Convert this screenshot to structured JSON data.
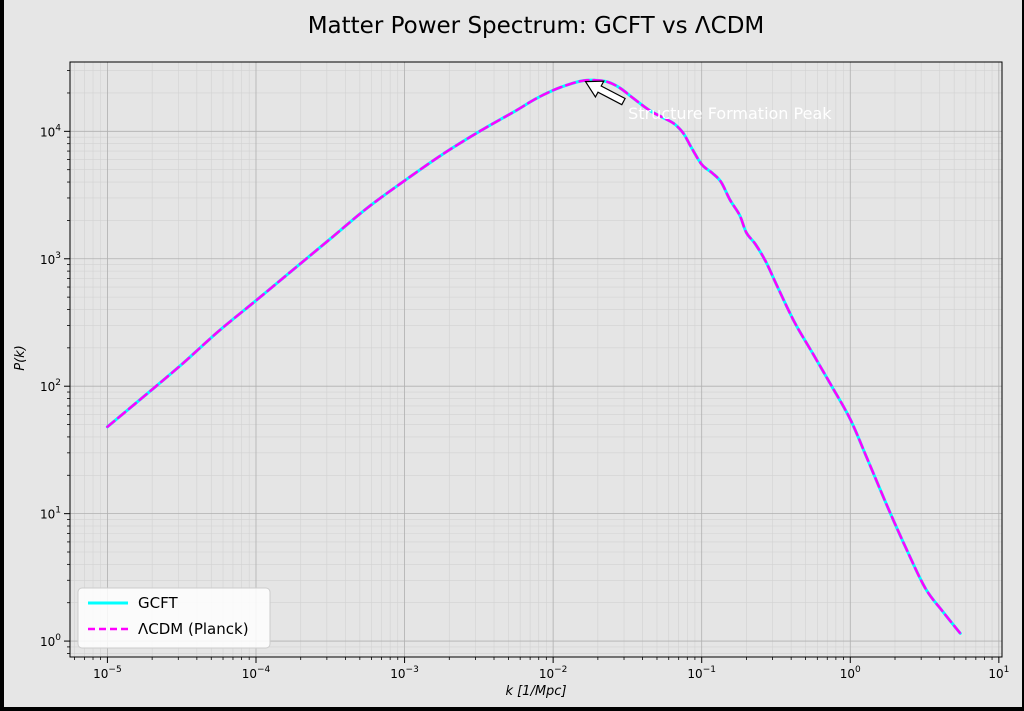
{
  "chart_data": {
    "type": "line",
    "title": "Matter Power Spectrum: GCFT vs ΛCDM",
    "xlabel": "k [1/Mpc]",
    "ylabel": "P(k)",
    "xscale": "log",
    "yscale": "log",
    "xlim": [
      5.6e-06,
      10.5
    ],
    "ylim": [
      0.75,
      35000
    ],
    "grid": true,
    "legend": "lower-left",
    "x_ticks": [
      "10^-5",
      "10^-4",
      "10^-3",
      "10^-2",
      "10^-1",
      "10^0",
      "10^1"
    ],
    "y_ticks": [
      "10^0",
      "10^1",
      "10^2",
      "10^3",
      "10^4"
    ],
    "series": [
      {
        "name": "GCFT",
        "color": "#00ffff",
        "style": "solid",
        "x": [
          1e-05,
          1.8e-05,
          3.2e-05,
          5.6e-05,
          0.0001,
          0.00018,
          0.00032,
          0.00056,
          0.001,
          0.0018,
          0.0032,
          0.0056,
          0.0075,
          0.01,
          0.013,
          0.016,
          0.019,
          0.023,
          0.028,
          0.035,
          0.045,
          0.055,
          0.065,
          0.075,
          0.085,
          0.1,
          0.118,
          0.135,
          0.155,
          0.18,
          0.2,
          0.23,
          0.27,
          0.32,
          0.42,
          0.56,
          0.75,
          1.0,
          1.3,
          1.8,
          2.4,
          3.2,
          4.2,
          5.5
        ],
        "values": [
          48,
          85,
          150,
          270,
          470,
          830,
          1450,
          2500,
          4100,
          6600,
          10000,
          14500,
          17800,
          21000,
          23500,
          25000,
          25200,
          24500,
          22000,
          18000,
          14500,
          12800,
          11500,
          9700,
          7500,
          5500,
          4700,
          4000,
          2900,
          2200,
          1600,
          1300,
          950,
          620,
          320,
          180,
          100,
          55,
          27,
          11,
          5.2,
          2.6,
          1.7,
          1.15
        ]
      },
      {
        "name": "ΛCDM (Planck)",
        "color": "#ff00ff",
        "style": "dashed",
        "x": [
          1e-05,
          1.8e-05,
          3.2e-05,
          5.6e-05,
          0.0001,
          0.00018,
          0.00032,
          0.00056,
          0.001,
          0.0018,
          0.0032,
          0.0056,
          0.0075,
          0.01,
          0.013,
          0.016,
          0.019,
          0.023,
          0.028,
          0.035,
          0.045,
          0.055,
          0.065,
          0.075,
          0.085,
          0.1,
          0.118,
          0.135,
          0.155,
          0.18,
          0.2,
          0.23,
          0.27,
          0.32,
          0.42,
          0.56,
          0.75,
          1.0,
          1.3,
          1.8,
          2.4,
          3.2,
          4.2,
          5.5
        ],
        "values": [
          48,
          85,
          150,
          270,
          470,
          830,
          1450,
          2500,
          4100,
          6600,
          10000,
          14500,
          17800,
          21000,
          23500,
          25000,
          25200,
          24500,
          22000,
          18000,
          14500,
          12800,
          11500,
          9700,
          7500,
          5500,
          4700,
          4000,
          2900,
          2200,
          1600,
          1300,
          950,
          620,
          320,
          180,
          100,
          55,
          27,
          11,
          5.2,
          2.6,
          1.7,
          1.15
        ]
      }
    ],
    "annotations": [
      {
        "text": "Structure Formation Peak",
        "x": 0.016,
        "y": 25000,
        "text_x": 0.032,
        "text_y": 12500,
        "color": "#ffffff"
      }
    ]
  }
}
